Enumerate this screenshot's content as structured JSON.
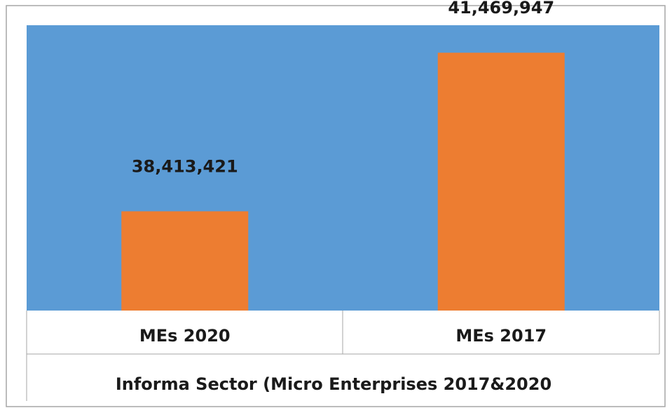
{
  "chart_data": {
    "type": "bar",
    "categories": [
      "MEs  2020",
      "MEs 2017"
    ],
    "values": [
      38413421,
      41469947
    ],
    "data_labels": [
      "38,413,421",
      "41,469,947"
    ],
    "xlabel": "Informa Sector (Micro Enterprises 2017&2020",
    "ylabel": "",
    "title": "",
    "ylim": [
      36500000,
      42000000
    ],
    "grid": false,
    "legend": "none"
  },
  "colors": {
    "plot_background": "#5b9bd5",
    "bar": "#ed7d31",
    "text": "#1a1a1a",
    "border": "#a6a6a6"
  }
}
